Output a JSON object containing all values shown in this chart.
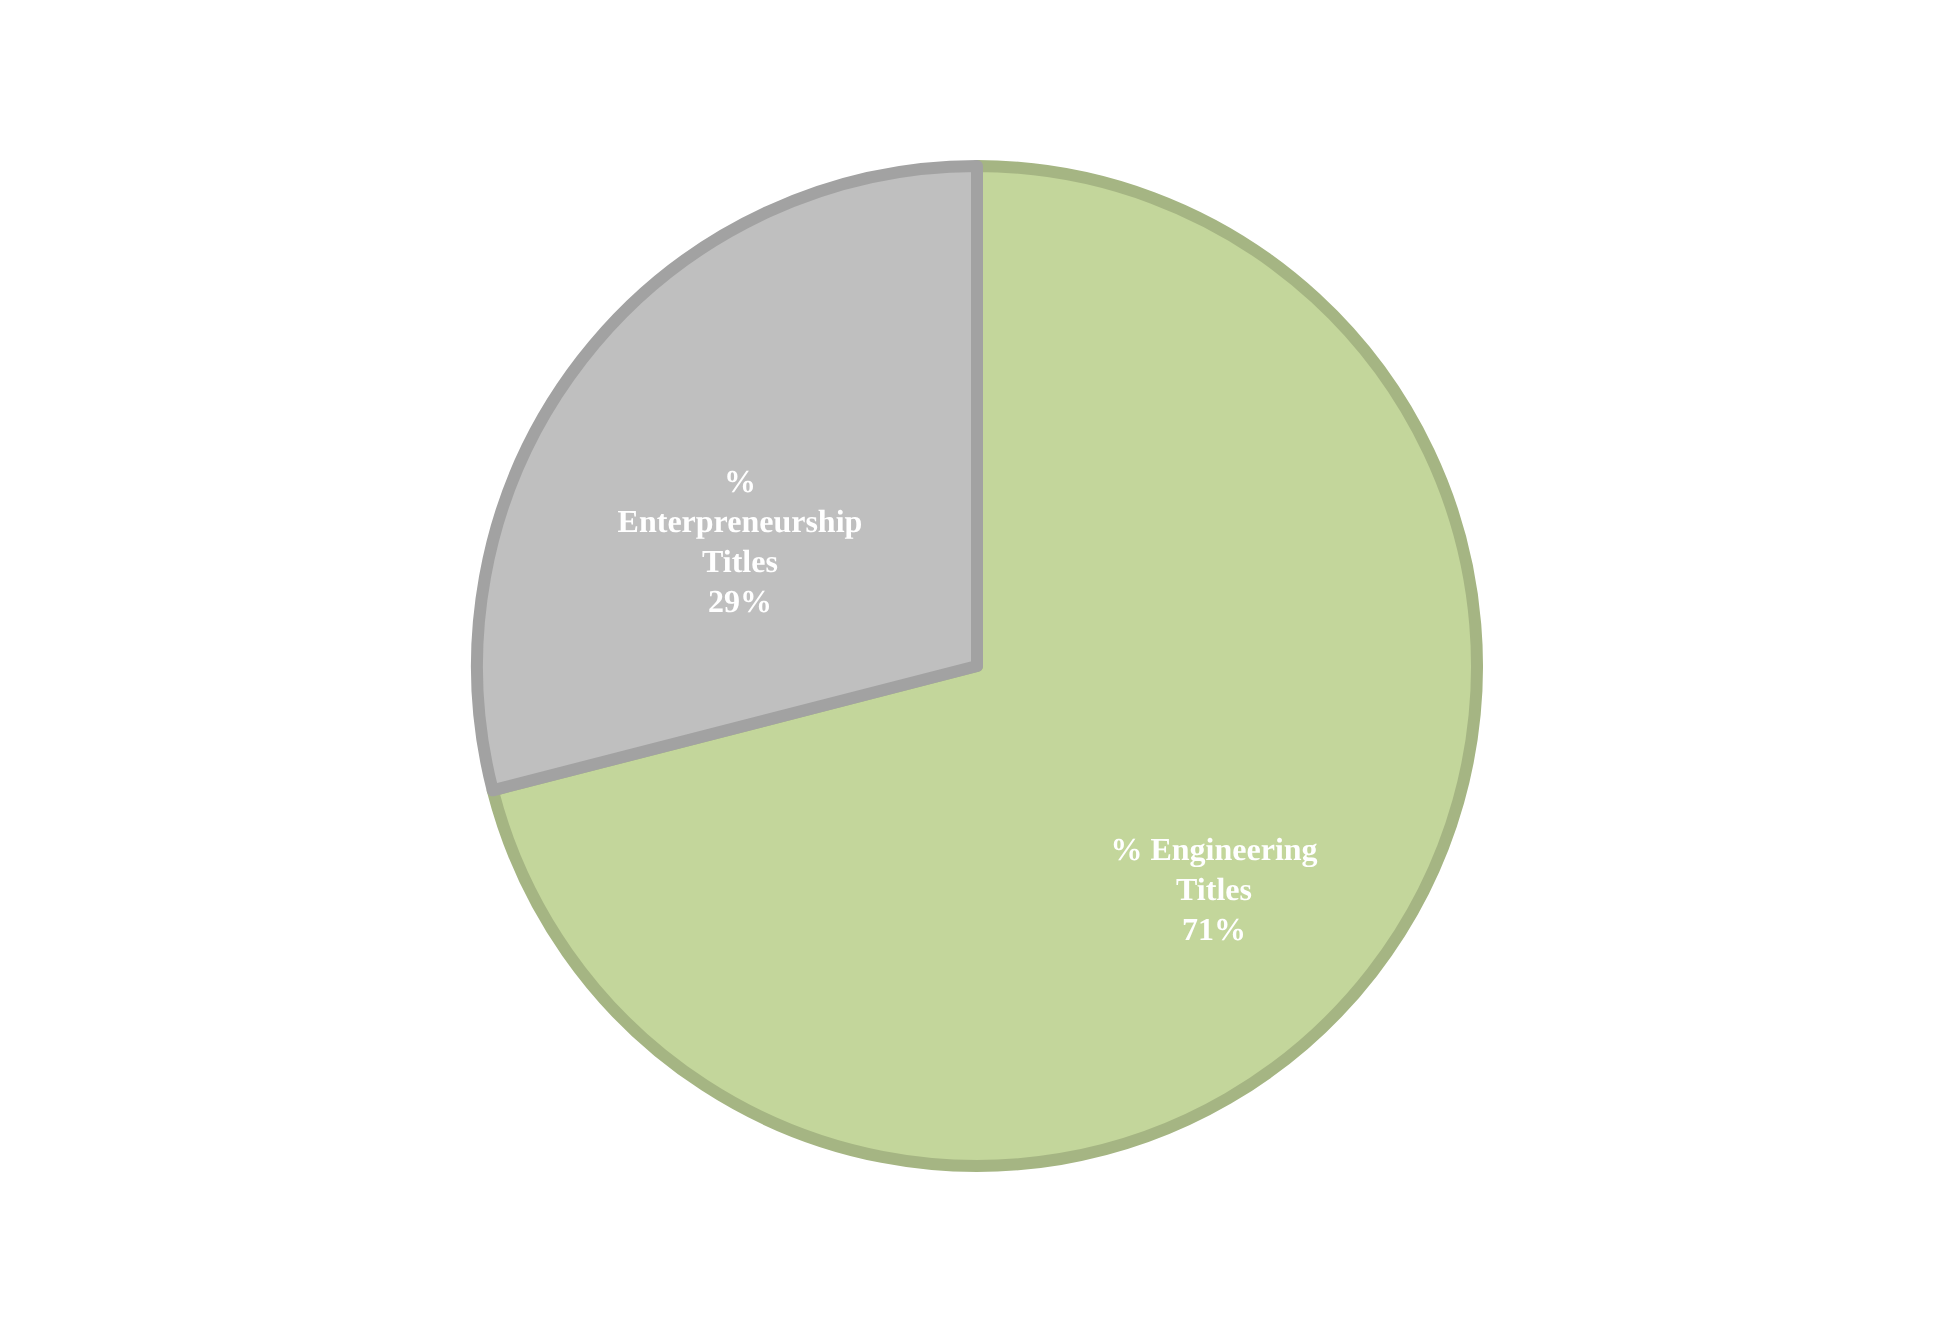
{
  "chart_data": {
    "type": "pie",
    "categories": [
      "% Engineering Titles",
      "% Enterpreneurship Titles"
    ],
    "values": [
      71,
      29
    ],
    "colors": [
      "#c3d69b",
      "#bfbfbf"
    ],
    "value_labels": [
      "71%",
      "29%"
    ],
    "legend": false
  }
}
